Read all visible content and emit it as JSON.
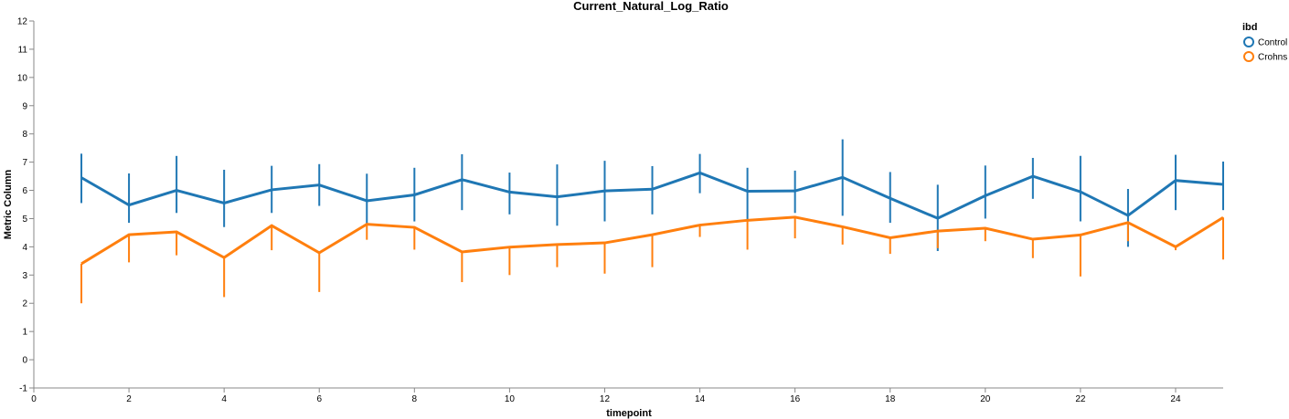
{
  "chart_data": {
    "type": "line",
    "title": "Current_Natural_Log_Ratio",
    "xlabel": "timepoint",
    "ylabel": "Metric Column",
    "xlim": [
      0,
      25
    ],
    "ylim": [
      -1,
      12
    ],
    "x_ticks": [
      0,
      2,
      4,
      6,
      8,
      10,
      12,
      14,
      16,
      18,
      20,
      22,
      24
    ],
    "y_ticks": [
      -1,
      0,
      1,
      2,
      3,
      4,
      5,
      6,
      7,
      8,
      9,
      10,
      11,
      12
    ],
    "grid": false,
    "legend": {
      "title": "ibd",
      "placement": "top-right"
    },
    "x": [
      1,
      2,
      3,
      4,
      5,
      6,
      7,
      8,
      9,
      10,
      11,
      12,
      13,
      14,
      15,
      16,
      17,
      18,
      19,
      20,
      21,
      22,
      23,
      24,
      25
    ],
    "series": [
      {
        "name": "Control",
        "color": "#1f77b4",
        "values": [
          6.45,
          5.48,
          6.0,
          5.55,
          6.02,
          6.19,
          5.63,
          5.84,
          6.38,
          5.94,
          5.77,
          5.98,
          6.04,
          6.62,
          5.97,
          5.98,
          6.46,
          5.72,
          5.01,
          5.81,
          6.5,
          5.95,
          5.11,
          6.35,
          6.21
        ],
        "err_low": [
          5.55,
          4.85,
          5.2,
          4.7,
          5.2,
          5.45,
          4.8,
          4.9,
          5.3,
          5.15,
          4.75,
          4.9,
          5.15,
          5.9,
          4.9,
          5.2,
          5.1,
          4.85,
          3.85,
          5.0,
          5.7,
          4.9,
          4.0,
          5.3,
          5.3
        ],
        "err_high": [
          7.3,
          6.6,
          7.22,
          6.73,
          6.87,
          6.93,
          6.59,
          6.8,
          7.28,
          6.63,
          6.92,
          7.05,
          6.86,
          7.29,
          6.8,
          6.7,
          7.81,
          6.65,
          6.2,
          6.88,
          7.15,
          7.22,
          6.05,
          7.26,
          7.02
        ]
      },
      {
        "name": "Crohns",
        "color": "#ff7f0e",
        "values": [
          3.4,
          4.43,
          4.53,
          3.62,
          4.75,
          3.79,
          4.8,
          4.69,
          3.82,
          3.99,
          4.08,
          4.14,
          4.43,
          4.77,
          4.94,
          5.05,
          4.71,
          4.32,
          4.56,
          4.66,
          4.27,
          4.42,
          4.86,
          4.0,
          5.04
        ],
        "err_low": [
          2.0,
          3.45,
          3.7,
          2.22,
          3.88,
          2.4,
          4.25,
          3.9,
          2.75,
          3.0,
          3.28,
          3.05,
          3.28,
          4.35,
          3.9,
          4.3,
          4.08,
          3.75,
          3.95,
          4.2,
          3.6,
          2.95,
          4.2,
          3.88,
          3.55
        ]
      }
    ]
  }
}
